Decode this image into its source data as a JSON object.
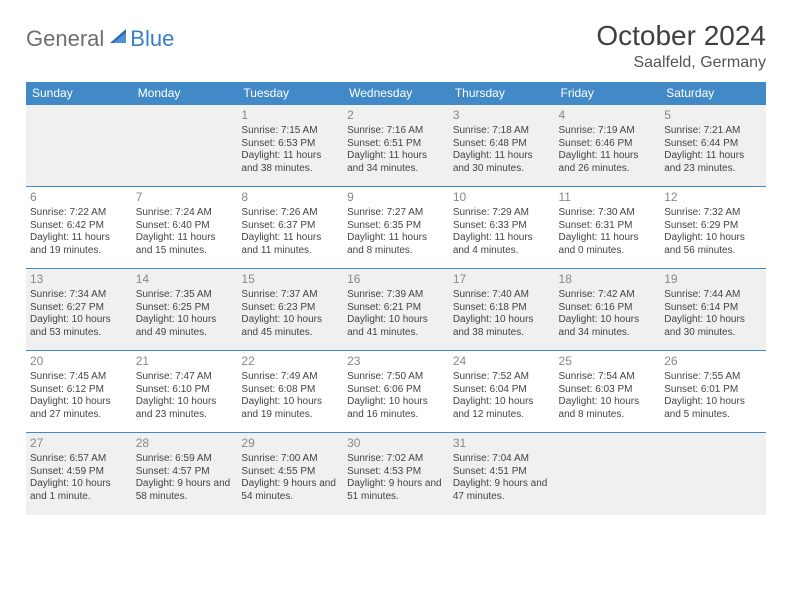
{
  "brand": {
    "part1": "General",
    "part2": "Blue"
  },
  "title": "October 2024",
  "location": "Saalfeld, Germany",
  "colors": {
    "header_bg": "#4289c8",
    "header_text": "#ffffff",
    "shade_bg": "#f0f0f0",
    "border": "#4289c8",
    "body_text": "#444444",
    "daynum_text": "#888888",
    "brand_gray": "#6f6f6f",
    "brand_blue": "#3a7fc4"
  },
  "weekdays": [
    "Sunday",
    "Monday",
    "Tuesday",
    "Wednesday",
    "Thursday",
    "Friday",
    "Saturday"
  ],
  "weeks": [
    [
      {
        "n": "",
        "sr": "",
        "ss": "",
        "dl": ""
      },
      {
        "n": "",
        "sr": "",
        "ss": "",
        "dl": ""
      },
      {
        "n": "1",
        "sr": "Sunrise: 7:15 AM",
        "ss": "Sunset: 6:53 PM",
        "dl": "Daylight: 11 hours and 38 minutes."
      },
      {
        "n": "2",
        "sr": "Sunrise: 7:16 AM",
        "ss": "Sunset: 6:51 PM",
        "dl": "Daylight: 11 hours and 34 minutes."
      },
      {
        "n": "3",
        "sr": "Sunrise: 7:18 AM",
        "ss": "Sunset: 6:48 PM",
        "dl": "Daylight: 11 hours and 30 minutes."
      },
      {
        "n": "4",
        "sr": "Sunrise: 7:19 AM",
        "ss": "Sunset: 6:46 PM",
        "dl": "Daylight: 11 hours and 26 minutes."
      },
      {
        "n": "5",
        "sr": "Sunrise: 7:21 AM",
        "ss": "Sunset: 6:44 PM",
        "dl": "Daylight: 11 hours and 23 minutes."
      }
    ],
    [
      {
        "n": "6",
        "sr": "Sunrise: 7:22 AM",
        "ss": "Sunset: 6:42 PM",
        "dl": "Daylight: 11 hours and 19 minutes."
      },
      {
        "n": "7",
        "sr": "Sunrise: 7:24 AM",
        "ss": "Sunset: 6:40 PM",
        "dl": "Daylight: 11 hours and 15 minutes."
      },
      {
        "n": "8",
        "sr": "Sunrise: 7:26 AM",
        "ss": "Sunset: 6:37 PM",
        "dl": "Daylight: 11 hours and 11 minutes."
      },
      {
        "n": "9",
        "sr": "Sunrise: 7:27 AM",
        "ss": "Sunset: 6:35 PM",
        "dl": "Daylight: 11 hours and 8 minutes."
      },
      {
        "n": "10",
        "sr": "Sunrise: 7:29 AM",
        "ss": "Sunset: 6:33 PM",
        "dl": "Daylight: 11 hours and 4 minutes."
      },
      {
        "n": "11",
        "sr": "Sunrise: 7:30 AM",
        "ss": "Sunset: 6:31 PM",
        "dl": "Daylight: 11 hours and 0 minutes."
      },
      {
        "n": "12",
        "sr": "Sunrise: 7:32 AM",
        "ss": "Sunset: 6:29 PM",
        "dl": "Daylight: 10 hours and 56 minutes."
      }
    ],
    [
      {
        "n": "13",
        "sr": "Sunrise: 7:34 AM",
        "ss": "Sunset: 6:27 PM",
        "dl": "Daylight: 10 hours and 53 minutes."
      },
      {
        "n": "14",
        "sr": "Sunrise: 7:35 AM",
        "ss": "Sunset: 6:25 PM",
        "dl": "Daylight: 10 hours and 49 minutes."
      },
      {
        "n": "15",
        "sr": "Sunrise: 7:37 AM",
        "ss": "Sunset: 6:23 PM",
        "dl": "Daylight: 10 hours and 45 minutes."
      },
      {
        "n": "16",
        "sr": "Sunrise: 7:39 AM",
        "ss": "Sunset: 6:21 PM",
        "dl": "Daylight: 10 hours and 41 minutes."
      },
      {
        "n": "17",
        "sr": "Sunrise: 7:40 AM",
        "ss": "Sunset: 6:18 PM",
        "dl": "Daylight: 10 hours and 38 minutes."
      },
      {
        "n": "18",
        "sr": "Sunrise: 7:42 AM",
        "ss": "Sunset: 6:16 PM",
        "dl": "Daylight: 10 hours and 34 minutes."
      },
      {
        "n": "19",
        "sr": "Sunrise: 7:44 AM",
        "ss": "Sunset: 6:14 PM",
        "dl": "Daylight: 10 hours and 30 minutes."
      }
    ],
    [
      {
        "n": "20",
        "sr": "Sunrise: 7:45 AM",
        "ss": "Sunset: 6:12 PM",
        "dl": "Daylight: 10 hours and 27 minutes."
      },
      {
        "n": "21",
        "sr": "Sunrise: 7:47 AM",
        "ss": "Sunset: 6:10 PM",
        "dl": "Daylight: 10 hours and 23 minutes."
      },
      {
        "n": "22",
        "sr": "Sunrise: 7:49 AM",
        "ss": "Sunset: 6:08 PM",
        "dl": "Daylight: 10 hours and 19 minutes."
      },
      {
        "n": "23",
        "sr": "Sunrise: 7:50 AM",
        "ss": "Sunset: 6:06 PM",
        "dl": "Daylight: 10 hours and 16 minutes."
      },
      {
        "n": "24",
        "sr": "Sunrise: 7:52 AM",
        "ss": "Sunset: 6:04 PM",
        "dl": "Daylight: 10 hours and 12 minutes."
      },
      {
        "n": "25",
        "sr": "Sunrise: 7:54 AM",
        "ss": "Sunset: 6:03 PM",
        "dl": "Daylight: 10 hours and 8 minutes."
      },
      {
        "n": "26",
        "sr": "Sunrise: 7:55 AM",
        "ss": "Sunset: 6:01 PM",
        "dl": "Daylight: 10 hours and 5 minutes."
      }
    ],
    [
      {
        "n": "27",
        "sr": "Sunrise: 6:57 AM",
        "ss": "Sunset: 4:59 PM",
        "dl": "Daylight: 10 hours and 1 minute."
      },
      {
        "n": "28",
        "sr": "Sunrise: 6:59 AM",
        "ss": "Sunset: 4:57 PM",
        "dl": "Daylight: 9 hours and 58 minutes."
      },
      {
        "n": "29",
        "sr": "Sunrise: 7:00 AM",
        "ss": "Sunset: 4:55 PM",
        "dl": "Daylight: 9 hours and 54 minutes."
      },
      {
        "n": "30",
        "sr": "Sunrise: 7:02 AM",
        "ss": "Sunset: 4:53 PM",
        "dl": "Daylight: 9 hours and 51 minutes."
      },
      {
        "n": "31",
        "sr": "Sunrise: 7:04 AM",
        "ss": "Sunset: 4:51 PM",
        "dl": "Daylight: 9 hours and 47 minutes."
      },
      {
        "n": "",
        "sr": "",
        "ss": "",
        "dl": ""
      },
      {
        "n": "",
        "sr": "",
        "ss": "",
        "dl": ""
      }
    ]
  ],
  "shaded_rows": [
    0,
    2,
    4
  ]
}
